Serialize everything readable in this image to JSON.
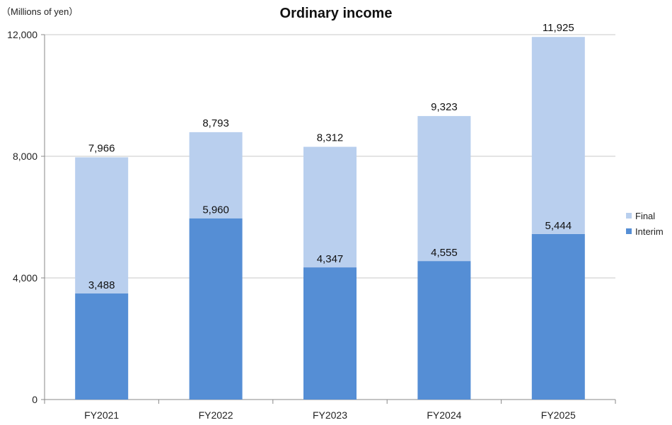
{
  "chart_data": {
    "type": "bar",
    "stacked": true,
    "title": "Ordinary income",
    "unit_label": "（Millions of yen）",
    "categories": [
      "FY2021",
      "FY2022",
      "FY2023",
      "FY2024",
      "FY2025"
    ],
    "series": [
      {
        "name": "Interim",
        "color": "#558ed5",
        "values": [
          3488,
          5960,
          4347,
          4555,
          5444
        ]
      },
      {
        "name": "Final",
        "color": "#b9cfee",
        "values": [
          4478,
          2833,
          3965,
          4768,
          6481
        ]
      }
    ],
    "labels": {
      "interim": [
        "3,488",
        "5,960",
        "4,347",
        "4,555",
        "5,444"
      ],
      "total": [
        "7,966",
        "8,793",
        "8,312",
        "9,323",
        "11,925"
      ]
    },
    "ylim": [
      0,
      12000
    ],
    "yticks": [
      0,
      4000,
      8000,
      12000
    ],
    "ytick_labels": [
      "0",
      "4,000",
      "8,000",
      "12,000"
    ],
    "grid": true,
    "legend": "right",
    "legend_order": [
      "Final",
      "Interim"
    ]
  }
}
